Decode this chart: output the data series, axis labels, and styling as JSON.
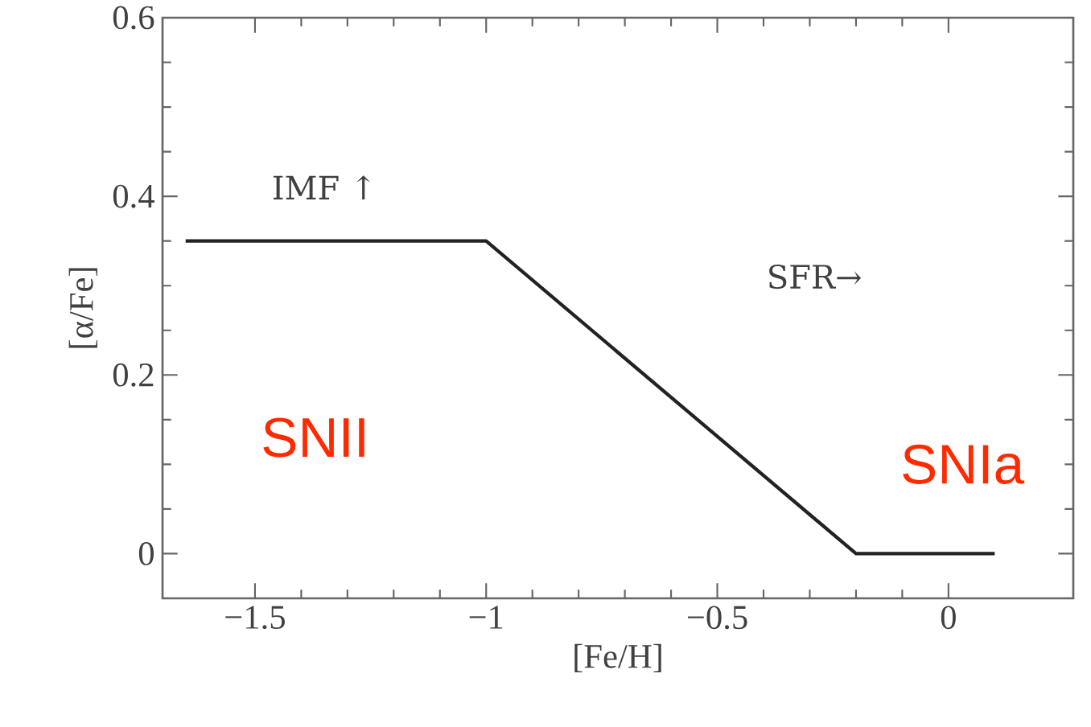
{
  "chart_data": {
    "type": "line",
    "xlabel": "[Fe/H]",
    "ylabel": "[α/Fe]",
    "x": [
      -1.65,
      -1,
      -0.2,
      0.1
    ],
    "series": [
      {
        "color": "#222222",
        "values": [
          0.35,
          0.35,
          0,
          0
        ]
      }
    ],
    "xlim": [
      -1.7,
      0.27
    ],
    "ylim": [
      -0.05,
      0.6
    ],
    "xticks": [
      {
        "value": -1.5,
        "label": "−1.5"
      },
      {
        "value": -1,
        "label": "−1"
      },
      {
        "value": -0.5,
        "label": "−0.5"
      },
      0
    ],
    "yticks": [
      0,
      0.2,
      0.4,
      0.6
    ],
    "marker": "none",
    "line_style": "solid",
    "grid": false,
    "annotations": [
      "IMF ↑",
      "SFR→",
      "SNII",
      "SNIa"
    ]
  }
}
